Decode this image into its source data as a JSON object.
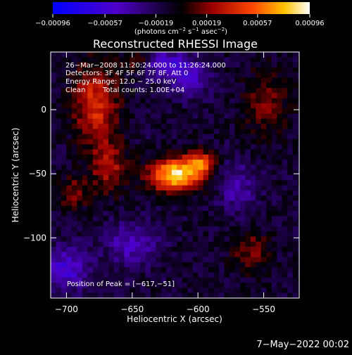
{
  "chart_data": {
    "type": "heatmap",
    "title": "Reconstructed RHESSI Image",
    "xlabel": "Heliocentric X (arcsec)",
    "ylabel": "Heliocentric Y (arcsec)",
    "xlim": [
      -712,
      -523
    ],
    "ylim": [
      -147,
      45
    ],
    "x_ticks": [
      -700,
      -650,
      -600,
      -550
    ],
    "y_ticks": [
      0,
      -50,
      -100
    ],
    "x_tick_labels": [
      "−700",
      "−650",
      "−600",
      "−550"
    ],
    "y_tick_labels": [
      "0",
      "−50",
      "−100"
    ],
    "colorbar": {
      "min": -0.00096,
      "max": 0.00096,
      "tick_values": [
        -0.00096,
        -0.00057,
        -0.00019,
        0.00019,
        0.00057,
        0.00096
      ],
      "tick_labels": [
        "−0.00096",
        "−0.00057",
        "−0.00019",
        "0.00019",
        "0.00057",
        "0.00096"
      ],
      "unit_text": "(photons cm",
      "unit_exp1": "−2",
      "unit_mid": " s",
      "unit_exp2": "−1",
      "unit_mid2": " asec",
      "unit_exp3": "−2",
      "unit_close": ")"
    },
    "annotations": {
      "time_range": "26−Mar−2008 11:20:24.000 to 11:26:24.000",
      "detectors": "Detectors: 3F 4F 5F 6F 7F 8F, Att 0",
      "energy": "Energy Range: 12.0 − 25.0 keV",
      "clean": "Clean",
      "counts": "Total counts: 1.00E+04",
      "peak": "Position of Peak = [−617,−51]"
    },
    "peak": {
      "x": -617,
      "y": -51,
      "value": 0.00096
    },
    "sources": [
      {
        "x": -617,
        "y": -51,
        "sx": 14,
        "sy": 9,
        "amp": 1.0
      },
      {
        "x": -598,
        "y": -42,
        "sx": 8,
        "sy": 7,
        "amp": 0.55
      },
      {
        "x": -678,
        "y": 5,
        "sx": 12,
        "sy": 22,
        "amp": 0.55
      },
      {
        "x": -668,
        "y": -45,
        "sx": 10,
        "sy": 14,
        "amp": 0.4
      },
      {
        "x": -695,
        "y": -65,
        "sx": 8,
        "sy": 10,
        "amp": 0.3
      },
      {
        "x": -548,
        "y": 5,
        "sx": 12,
        "sy": 18,
        "amp": 0.3
      },
      {
        "x": -560,
        "y": -110,
        "sx": 10,
        "sy": 12,
        "amp": 0.3
      },
      {
        "x": -645,
        "y": 38,
        "sx": 8,
        "sy": 6,
        "amp": 0.3
      },
      {
        "x": -625,
        "y": 35,
        "sx": 12,
        "sy": 8,
        "amp": -0.45
      },
      {
        "x": -605,
        "y": 25,
        "sx": 10,
        "sy": 10,
        "amp": -0.35
      },
      {
        "x": -700,
        "y": -125,
        "sx": 12,
        "sy": 12,
        "amp": -0.45
      },
      {
        "x": -650,
        "y": -105,
        "sx": 14,
        "sy": 12,
        "amp": -0.35
      },
      {
        "x": -570,
        "y": -60,
        "sx": 10,
        "sy": 14,
        "amp": -0.3
      }
    ]
  },
  "footer": {
    "date_text": "7−May−2022 00:02"
  }
}
